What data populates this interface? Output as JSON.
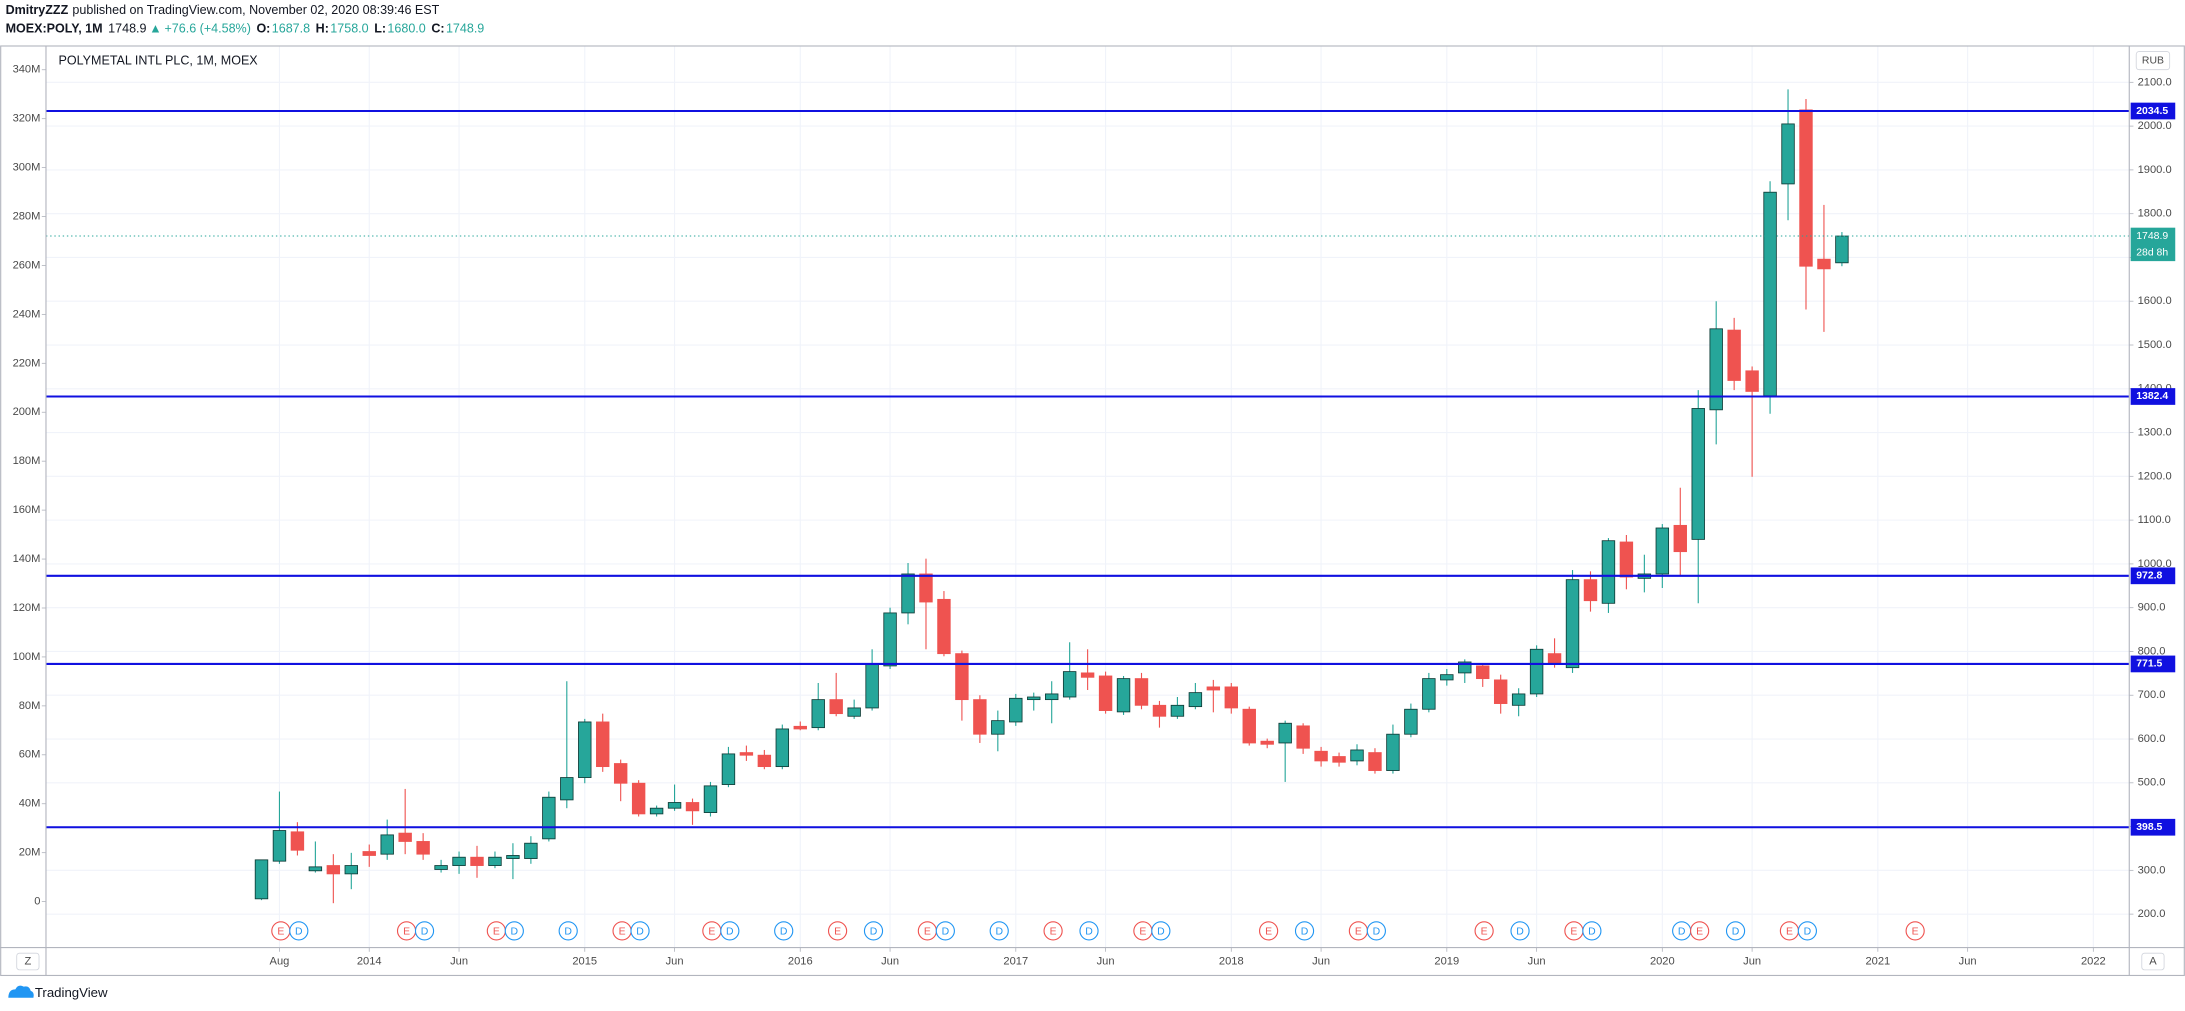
{
  "header": {
    "author": "DmitryZZZ",
    "published": "published on TradingView.com, November 02, 2020 08:39:46 EST",
    "symbol": "MOEX:POLY, 1M",
    "last": "1748.9",
    "arrow": "▲",
    "change": "+76.6 (+4.58%)",
    "ohlc": [
      {
        "key": "O:",
        "value": "1687.8"
      },
      {
        "key": "H:",
        "value": "1758.0"
      },
      {
        "key": "L:",
        "value": "1680.0"
      },
      {
        "key": "C:",
        "value": "1748.9"
      }
    ]
  },
  "chart_data": {
    "type": "candlestick",
    "title": "POLYMETAL INTL PLC, 1M, MOEX",
    "currency": "RUB",
    "x": [
      "2013-07",
      "2013-08",
      "2013-09",
      "2013-10",
      "2013-11",
      "2013-12",
      "2014-01",
      "2014-02",
      "2014-03",
      "2014-04",
      "2014-05",
      "2014-06",
      "2014-07",
      "2014-08",
      "2014-09",
      "2014-10",
      "2014-11",
      "2014-12",
      "2015-01",
      "2015-02",
      "2015-03",
      "2015-04",
      "2015-05",
      "2015-06",
      "2015-07",
      "2015-08",
      "2015-09",
      "2015-10",
      "2015-11",
      "2015-12",
      "2016-01",
      "2016-02",
      "2016-03",
      "2016-04",
      "2016-05",
      "2016-06",
      "2016-07",
      "2016-08",
      "2016-09",
      "2016-10",
      "2016-11",
      "2016-12",
      "2017-01",
      "2017-02",
      "2017-03",
      "2017-04",
      "2017-05",
      "2017-06",
      "2017-07",
      "2017-08",
      "2017-09",
      "2017-10",
      "2017-11",
      "2017-12",
      "2018-01",
      "2018-02",
      "2018-03",
      "2018-04",
      "2018-05",
      "2018-06",
      "2018-07",
      "2018-08",
      "2018-09",
      "2018-10",
      "2018-11",
      "2018-12",
      "2019-01",
      "2019-02",
      "2019-03",
      "2019-04",
      "2019-05",
      "2019-06",
      "2019-07",
      "2019-08",
      "2019-09",
      "2019-10",
      "2019-11",
      "2019-12",
      "2020-01",
      "2020-02",
      "2020-03",
      "2020-04",
      "2020-05",
      "2020-06",
      "2020-07",
      "2020-08",
      "2020-09",
      "2020-10",
      "2020-11"
    ],
    "open": [
      235,
      321,
      388,
      299,
      311,
      292,
      343,
      337,
      385,
      366,
      302,
      311,
      330,
      311,
      327,
      327,
      372,
      461,
      512,
      639,
      544,
      499,
      429,
      442,
      455,
      432,
      496,
      569,
      563,
      537,
      629,
      626,
      690,
      652,
      671,
      767,
      888,
      977,
      919,
      795,
      690,
      611,
      639,
      690,
      690,
      696,
      751,
      744,
      662,
      738,
      677,
      652,
      674,
      719,
      719,
      668,
      595,
      591,
      630,
      572,
      560,
      550,
      569,
      528,
      611,
      668,
      735,
      751,
      767,
      735,
      677,
      703,
      795,
      763,
      964,
      910,
      1050,
      967,
      977,
      1088,
      1056,
      1352,
      1534,
      1441,
      1384,
      1868,
      2037,
      1696,
      1687.8
    ],
    "high": [
      324,
      480,
      410,
      366,
      337,
      340,
      359,
      416,
      486,
      385,
      324,
      343,
      356,
      343,
      362,
      378,
      480,
      732,
      646,
      658,
      553,
      506,
      448,
      496,
      464,
      502,
      582,
      585,
      575,
      633,
      640,
      728,
      751,
      690,
      805,
      900,
      1002,
      1012,
      938,
      802,
      700,
      665,
      703,
      706,
      732,
      821,
      805,
      754,
      744,
      751,
      687,
      696,
      728,
      735,
      728,
      674,
      601,
      642,
      636,
      582,
      569,
      588,
      579,
      633,
      681,
      751,
      760,
      782,
      773,
      747,
      716,
      814,
      830,
      986,
      983,
      1059,
      1066,
      1021,
      1091,
      1174,
      1397,
      1600,
      1562,
      1451,
      1874,
      2084,
      2062,
      1820,
      1758
    ],
    "low": [
      232,
      315,
      334,
      295,
      225,
      257,
      308,
      324,
      337,
      324,
      295,
      292,
      283,
      305,
      280,
      315,
      366,
      442,
      499,
      525,
      458,
      423,
      423,
      436,
      404,
      423,
      490,
      550,
      531,
      531,
      620,
      620,
      652,
      646,
      665,
      760,
      862,
      805,
      789,
      642,
      591,
      572,
      630,
      665,
      636,
      690,
      712,
      658,
      655,
      668,
      626,
      646,
      668,
      661,
      658,
      585,
      579,
      502,
      566,
      537,
      537,
      540,
      521,
      521,
      604,
      661,
      722,
      728,
      719,
      658,
      652,
      696,
      763,
      751,
      891,
      888,
      942,
      935,
      945,
      973,
      910,
      1273,
      1397,
      1199,
      1343,
      1785,
      1581,
      1530,
      1680
    ],
    "close": [
      324,
      391,
      346,
      308,
      292,
      311,
      334,
      381,
      366,
      337,
      311,
      330,
      311,
      330,
      334,
      362,
      467,
      512,
      639,
      537,
      499,
      429,
      442,
      455,
      436,
      493,
      566,
      563,
      537,
      623,
      623,
      690,
      658,
      671,
      770,
      888,
      977,
      913,
      795,
      690,
      611,
      642,
      693,
      696,
      703,
      754,
      741,
      665,
      738,
      677,
      652,
      677,
      706,
      712,
      671,
      591,
      588,
      636,
      579,
      550,
      547,
      575,
      528,
      611,
      668,
      738,
      747,
      776,
      738,
      681,
      703,
      805,
      773,
      964,
      916,
      1053,
      970,
      977,
      1082,
      1028,
      1355,
      1537,
      1419,
      1394,
      1849,
      2005,
      1680,
      1674,
      1748.9
    ],
    "up_color": "#26a69a",
    "down_color": "#ef5350",
    "xlim": [
      "2012-07",
      "2022-03"
    ],
    "xticks": [
      {
        "value": "2013-08",
        "label": "Aug"
      },
      {
        "value": "2014-01",
        "label": "2014"
      },
      {
        "value": "2014-06",
        "label": "Jun"
      },
      {
        "value": "2015-01",
        "label": "2015"
      },
      {
        "value": "2015-06",
        "label": "Jun"
      },
      {
        "value": "2016-01",
        "label": "2016"
      },
      {
        "value": "2016-06",
        "label": "Jun"
      },
      {
        "value": "2017-01",
        "label": "2017"
      },
      {
        "value": "2017-06",
        "label": "Jun"
      },
      {
        "value": "2018-01",
        "label": "2018"
      },
      {
        "value": "2018-06",
        "label": "Jun"
      },
      {
        "value": "2019-01",
        "label": "2019"
      },
      {
        "value": "2019-06",
        "label": "Jun"
      },
      {
        "value": "2020-01",
        "label": "2020"
      },
      {
        "value": "2020-06",
        "label": "Jun"
      },
      {
        "value": "2021-01",
        "label": "2021"
      },
      {
        "value": "2021-06",
        "label": "Jun"
      },
      {
        "value": "2022-01",
        "label": "2022"
      }
    ],
    "ylim": [
      123.6,
      2183
    ],
    "yticks": [
      {
        "value": 200,
        "label": "200.0"
      },
      {
        "value": 300,
        "label": "300.0"
      },
      {
        "value": 400,
        "label": "400.0"
      },
      {
        "value": 500,
        "label": "500.0"
      },
      {
        "value": 600,
        "label": "600.0"
      },
      {
        "value": 700,
        "label": "700.0"
      },
      {
        "value": 800,
        "label": "800.0"
      },
      {
        "value": 900,
        "label": "900.0"
      },
      {
        "value": 1000,
        "label": "1000.0"
      },
      {
        "value": 1100,
        "label": "1100.0"
      },
      {
        "value": 1200,
        "label": "1200.0"
      },
      {
        "value": 1300,
        "label": "1300.0"
      },
      {
        "value": 1400,
        "label": "1400.0"
      },
      {
        "value": 1500,
        "label": "1500.0"
      },
      {
        "value": 1600,
        "label": "1600.0"
      },
      {
        "value": 1700,
        "label": "1700.0"
      },
      {
        "value": 1800,
        "label": "1800.0"
      },
      {
        "value": 1900,
        "label": "1900.0"
      },
      {
        "value": 2000,
        "label": "2000.0"
      },
      {
        "value": 2100,
        "label": "2100.0"
      }
    ],
    "y2lim": [
      -18800000,
      349700000
    ],
    "y2ticks": [
      0,
      {
        "value": 20000000,
        "label": "20M"
      },
      {
        "value": 40000000,
        "label": "40M"
      },
      {
        "value": 60000000,
        "label": "60M"
      },
      {
        "value": 80000000,
        "label": "80M"
      },
      {
        "value": 100000000,
        "label": "100M"
      },
      {
        "value": 120000000,
        "label": "120M"
      },
      {
        "value": 140000000,
        "label": "140M"
      },
      {
        "value": 160000000,
        "label": "160M"
      },
      {
        "value": 180000000,
        "label": "180M"
      },
      {
        "value": 200000000,
        "label": "200M"
      },
      {
        "value": 220000000,
        "label": "220M"
      },
      {
        "value": 240000000,
        "label": "240M"
      },
      {
        "value": 260000000,
        "label": "260M"
      },
      {
        "value": 280000000,
        "label": "280M"
      },
      {
        "value": 300000000,
        "label": "300M"
      },
      {
        "value": 320000000,
        "label": "320M"
      },
      {
        "value": 340000000,
        "label": "340M"
      }
    ],
    "grid": true,
    "levels": [
      2034.5,
      1382.4,
      972.8,
      771.5,
      398.5
    ],
    "level_color": "#1010e0",
    "price_line": {
      "value": 1748.9,
      "countdown": "28d 8h",
      "color": "#26a69a"
    },
    "events": [
      {
        "label": "E",
        "x": "2013-08"
      },
      {
        "label": "D",
        "x": "2013-09"
      },
      {
        "label": "E",
        "x": "2014-03"
      },
      {
        "label": "D",
        "x": "2014-04"
      },
      {
        "label": "E",
        "x": "2014-08"
      },
      {
        "label": "D",
        "x": "2014-09"
      },
      {
        "label": "D",
        "x": "2014-12"
      },
      {
        "label": "E",
        "x": "2015-03"
      },
      {
        "label": "D",
        "x": "2015-04"
      },
      {
        "label": "E",
        "x": "2015-08"
      },
      {
        "label": "D",
        "x": "2015-09"
      },
      {
        "label": "D",
        "x": "2015-12"
      },
      {
        "label": "E",
        "x": "2016-03"
      },
      {
        "label": "D",
        "x": "2016-05"
      },
      {
        "label": "E",
        "x": "2016-08"
      },
      {
        "label": "D",
        "x": "2016-09"
      },
      {
        "label": "D",
        "x": "2016-12"
      },
      {
        "label": "E",
        "x": "2017-03"
      },
      {
        "label": "D",
        "x": "2017-05"
      },
      {
        "label": "E",
        "x": "2017-08"
      },
      {
        "label": "D",
        "x": "2017-09"
      },
      {
        "label": "E",
        "x": "2018-03"
      },
      {
        "label": "D",
        "x": "2018-05"
      },
      {
        "label": "E",
        "x": "2018-08"
      },
      {
        "label": "D",
        "x": "2018-09"
      },
      {
        "label": "E",
        "x": "2019-03"
      },
      {
        "label": "D",
        "x": "2019-05"
      },
      {
        "label": "E",
        "x": "2019-08"
      },
      {
        "label": "D",
        "x": "2019-09"
      },
      {
        "label": "D",
        "x": "2020-02"
      },
      {
        "label": "E",
        "x": "2020-03"
      },
      {
        "label": "D",
        "x": "2020-05"
      },
      {
        "label": "E",
        "x": "2020-08"
      },
      {
        "label": "D",
        "x": "2020-09"
      },
      {
        "label": "E",
        "x": "2021-03"
      }
    ],
    "event_colors": {
      "E": "#ef5350",
      "D": "#2196f3"
    },
    "scale_buttons": [
      "Z",
      "A"
    ],
    "brand": "TradingView"
  }
}
